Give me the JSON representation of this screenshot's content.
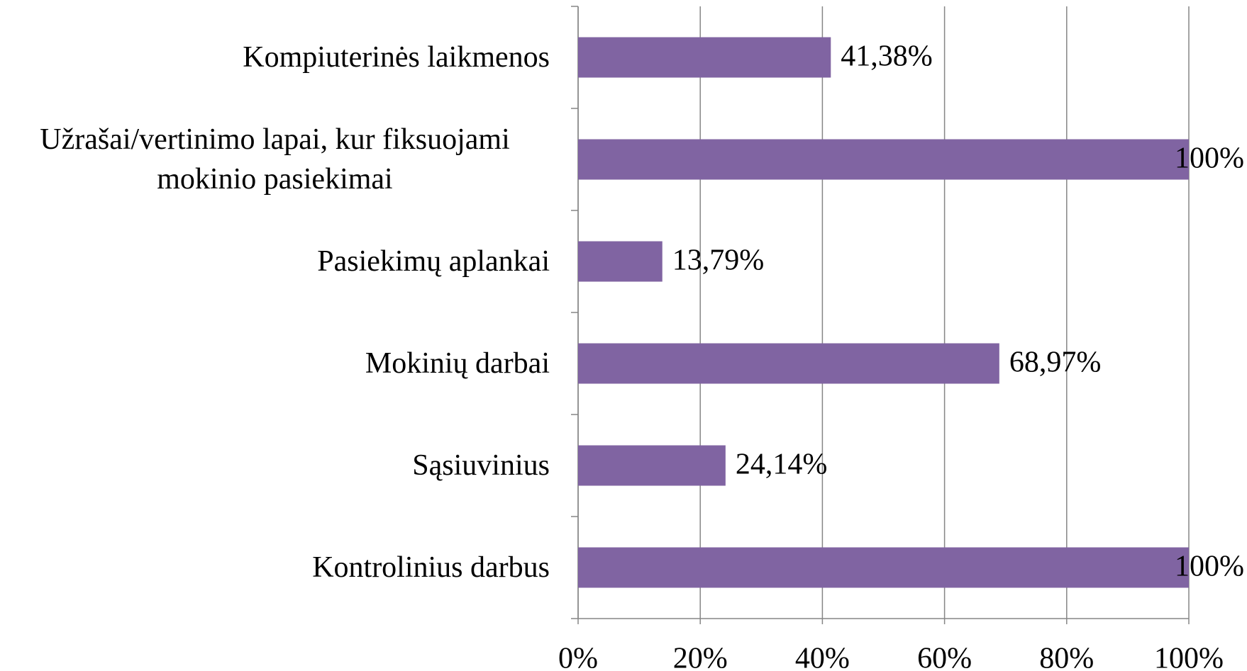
{
  "chart_data": {
    "type": "barh",
    "categories": [
      "Kompiuterinės laikmenos",
      "Užrašai/vertinimo lapai, kur fiksuojami mokinio pasiekimai",
      "Pasiekimų aplankai",
      "Mokinių darbai",
      "Sąsiuvinius",
      "Kontrolinius darbus"
    ],
    "values": [
      41.38,
      100,
      13.79,
      68.97,
      24.14,
      100
    ],
    "value_labels": [
      "41,38%",
      "100%",
      "13,79%",
      "68,97%",
      "24,14%",
      "100%"
    ],
    "color": "#8064a2",
    "xlim": [
      0,
      100
    ],
    "xticks": [
      {
        "value": 0,
        "label": "0%"
      },
      {
        "value": 20,
        "label": "20%"
      },
      {
        "value": 40,
        "label": "40%"
      },
      {
        "value": 60,
        "label": "60%"
      },
      {
        "value": 80,
        "label": "80%"
      },
      {
        "value": 100,
        "label": "100%"
      }
    ],
    "grid": true
  }
}
